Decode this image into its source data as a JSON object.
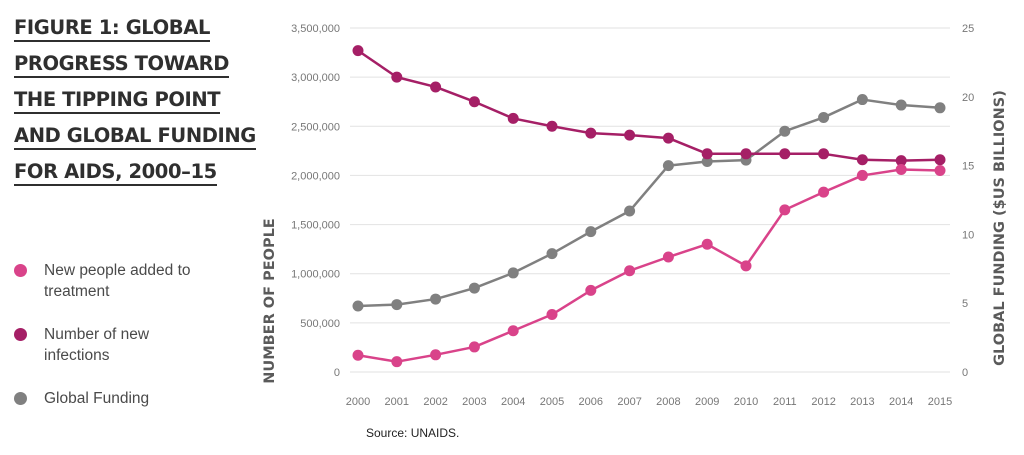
{
  "figure": {
    "title_lines": [
      "FIGURE 1: GLOBAL",
      "PROGRESS TOWARD",
      "THE TIPPING POINT",
      "AND GLOBAL FUNDING",
      "FOR AIDS, 2000–15"
    ],
    "source": "Source: UNAIDS."
  },
  "legend": [
    {
      "label": "New people added to treatment",
      "color": "#d9438a"
    },
    {
      "label": "Number of new infections",
      "color": "#a51f66"
    },
    {
      "label": "Global Funding",
      "color": "#808080"
    }
  ],
  "chart_data": {
    "type": "line",
    "title": "FIGURE 1: GLOBAL PROGRESS TOWARD THE TIPPING POINT AND GLOBAL FUNDING FOR AIDS, 2000–15",
    "categories": [
      "2000",
      "2001",
      "2002",
      "2003",
      "2004",
      "2005",
      "2006",
      "2007",
      "2008",
      "2009",
      "2010",
      "2011",
      "2012",
      "2013",
      "2014",
      "2015"
    ],
    "ylabel": "NUMBER OF PEOPLE",
    "ylabel_right": "GLOBAL FUNDING ($US BILLIONS)",
    "ylim": [
      0,
      3500000
    ],
    "ylim_right": [
      0,
      25
    ],
    "yticks": [
      0,
      500000,
      1000000,
      1500000,
      2000000,
      2500000,
      3000000,
      3500000
    ],
    "ytick_labels": [
      "0",
      "500,000",
      "1,000,000",
      "1,500,000",
      "2,000,000",
      "2,500,000",
      "3,000,000",
      "3,500,000"
    ],
    "yticks_right": [
      0,
      5,
      10,
      15,
      20,
      25
    ],
    "ytick_labels_right": [
      "0",
      "5",
      "10",
      "15",
      "20",
      "25"
    ],
    "grid": "horizontal",
    "series": [
      {
        "name": "New people added to treatment",
        "axis": "left",
        "color": "#d9438a",
        "values": [
          170000,
          105000,
          175000,
          255000,
          420000,
          585000,
          830000,
          1030000,
          1170000,
          1300000,
          1080000,
          1650000,
          1830000,
          2000000,
          2060000,
          2050000
        ]
      },
      {
        "name": "Number of new infections",
        "axis": "left",
        "color": "#a51f66",
        "values": [
          3270000,
          3000000,
          2900000,
          2750000,
          2580000,
          2500000,
          2430000,
          2410000,
          2380000,
          2220000,
          2220000,
          2220000,
          2220000,
          2160000,
          2150000,
          2160000
        ]
      },
      {
        "name": "Global Funding",
        "axis": "right",
        "color": "#808080",
        "values": [
          4.8,
          4.9,
          5.3,
          6.1,
          7.2,
          8.6,
          10.2,
          11.7,
          15.0,
          15.3,
          15.4,
          17.5,
          18.5,
          19.8,
          19.4,
          19.2
        ]
      }
    ]
  }
}
